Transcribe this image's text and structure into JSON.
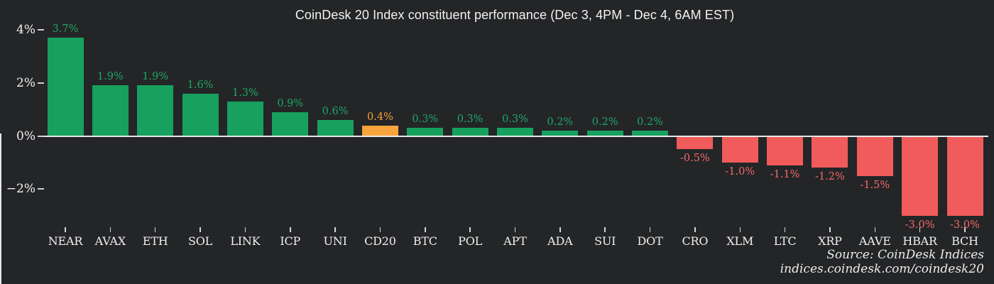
{
  "title": "CoinDesk 20 Index constituent performance (Dec 3, 4PM - Dec 4, 6AM EST)",
  "source": {
    "line1": "Source: CoinDesk Indices",
    "line2": "indices.coindesk.com/coindesk20"
  },
  "colors": {
    "background": "#242527",
    "positive_bar": "#17a05e",
    "positive_label": "#1ea767",
    "index_bar": "#f8a43d",
    "index_label": "#f8a43d",
    "negative_bar": "#f15b5b",
    "negative_label": "#f26a6a",
    "axis_text": "#f0f0f0",
    "zero_line": "#e8e8e8"
  },
  "chart_data": {
    "type": "bar",
    "title": "CoinDesk 20 Index constituent performance (Dec 3, 4PM - Dec 4, 6AM EST)",
    "categories": [
      "NEAR",
      "AVAX",
      "ETH",
      "SOL",
      "LINK",
      "ICP",
      "UNI",
      "CD20",
      "BTC",
      "POL",
      "APT",
      "ADA",
      "SUI",
      "DOT",
      "CRO",
      "XLM",
      "LTC",
      "XRP",
      "AAVE",
      "HBAR",
      "BCH"
    ],
    "values": [
      3.7,
      1.9,
      1.9,
      1.6,
      1.3,
      0.9,
      0.6,
      0.4,
      0.3,
      0.3,
      0.3,
      0.2,
      0.2,
      0.2,
      -0.5,
      -1.0,
      -1.1,
      -1.2,
      -1.5,
      -3.0,
      -3.0
    ],
    "display_labels": [
      "3.7%",
      "1.9%",
      "1.9%",
      "1.6%",
      "1.3%",
      "0.9%",
      "0.6%",
      "0.4%",
      "0.3%",
      "0.3%",
      "0.3%",
      "0.2%",
      "0.2%",
      "0.2%",
      "-0.5%",
      "-1.0%",
      "-1.1%",
      "-1.2%",
      "-1.5%",
      "-3.0%",
      "-3.0%"
    ],
    "highlight_category": "CD20",
    "xlabel": "",
    "ylabel": "",
    "ylim": [
      -3.6,
      4.4
    ],
    "yticks": [
      {
        "label": "4%",
        "value": 4
      },
      {
        "label": "2%",
        "value": 2
      },
      {
        "label": "0%",
        "value": 0
      },
      {
        "label": "−2%",
        "value": -2
      }
    ],
    "grid": false,
    "legend": false
  }
}
